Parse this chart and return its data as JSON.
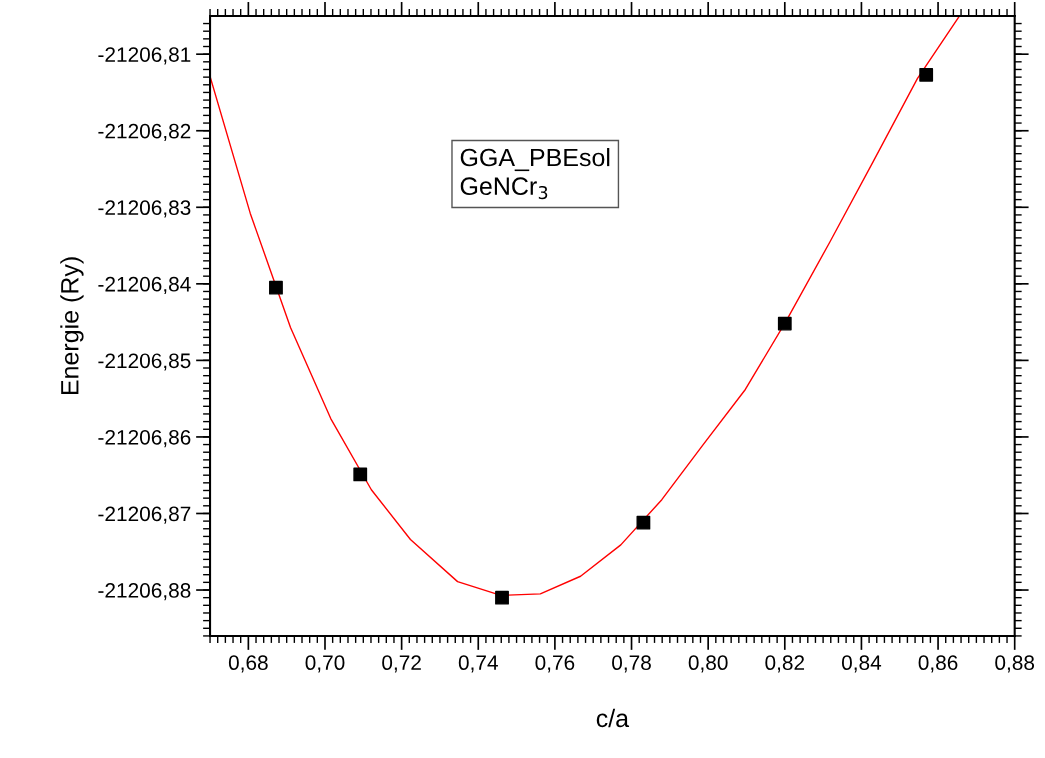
{
  "chart_data": {
    "type": "scatter",
    "xlabel": "c/a",
    "ylabel": "Energie (Ry)",
    "annotations": [
      "GGA_PBEsol\nGeNCr$_{3}$"
    ],
    "series": [
      {
        "color": "#000000",
        "marker": "square",
        "x": [
          0.6872,
          0.7092,
          0.7462,
          0.7831,
          0.82,
          0.8569
        ],
        "values": [
          -21206.8405,
          -21206.8649,
          -21206.881,
          -21206.8712,
          -21206.8452,
          -21206.8127
        ]
      },
      {
        "type": "line",
        "color": "#ff0000",
        "marker": "none",
        "line_style": "solid",
        "x": [
          0.67,
          0.6805,
          0.691,
          0.7015,
          0.7121,
          0.7223,
          0.7346,
          0.7459,
          0.7562,
          0.7667,
          0.7772,
          0.7879,
          0.7987,
          0.8097,
          0.8203,
          0.8318,
          0.8431,
          0.8546,
          0.8656
        ],
        "values": [
          -21206.8129,
          -21206.8308,
          -21206.8457,
          -21206.8576,
          -21206.8669,
          -21206.8734,
          -21206.8789,
          -21206.8807,
          -21206.8805,
          -21206.8782,
          -21206.8741,
          -21206.8682,
          -21206.861,
          -21206.8538,
          -21206.8449,
          -21206.8345,
          -21206.824,
          -21206.8132,
          -21206.805
        ]
      }
    ],
    "xlim": [
      0.67,
      0.88
    ],
    "xticks": [
      {
        "value": 0.68,
        "label": "0,68"
      },
      {
        "value": 0.7,
        "label": "0,70"
      },
      {
        "value": 0.72,
        "label": "0,72"
      },
      {
        "value": 0.74,
        "label": "0,74"
      },
      {
        "value": 0.76,
        "label": "0,76"
      },
      {
        "value": 0.78,
        "label": "0,78"
      },
      {
        "value": 0.8,
        "label": "0,80"
      },
      {
        "value": 0.82,
        "label": "0,82"
      },
      {
        "value": 0.84,
        "label": "0,84"
      },
      {
        "value": 0.86,
        "label": "0,86"
      },
      {
        "value": 0.88,
        "label": "0,88"
      }
    ],
    "ylim": [
      -21206.886,
      -21206.805
    ],
    "yticks": [
      {
        "value": -21206.81,
        "label": "-21206,81"
      },
      {
        "value": -21206.82,
        "label": "-21206,82"
      },
      {
        "value": -21206.83,
        "label": "-21206,83"
      },
      {
        "value": -21206.84,
        "label": "-21206,84"
      },
      {
        "value": -21206.85,
        "label": "-21206,85"
      },
      {
        "value": -21206.86,
        "label": "-21206,86"
      },
      {
        "value": -21206.87,
        "label": "-21206,87"
      },
      {
        "value": -21206.88,
        "label": "-21206,88"
      }
    ],
    "grid": false,
    "legend": false
  }
}
